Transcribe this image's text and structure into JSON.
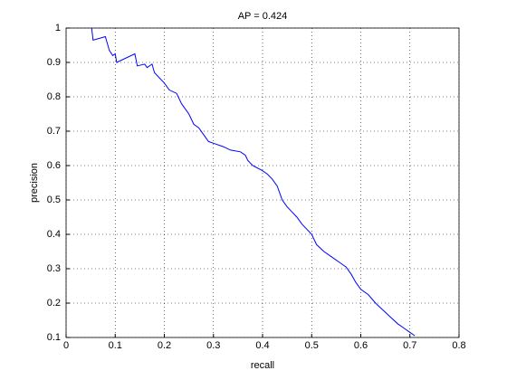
{
  "chart_data": {
    "type": "line",
    "title": "AP = 0.424",
    "xlabel": "recall",
    "ylabel": "precision",
    "xlim": [
      0,
      0.8
    ],
    "ylim": [
      0.1,
      1
    ],
    "xticks": [
      0,
      0.1,
      0.2,
      0.3,
      0.4,
      0.5,
      0.6,
      0.7,
      0.8
    ],
    "yticks": [
      0.1,
      0.2,
      0.3,
      0.4,
      0.5,
      0.6,
      0.7,
      0.8,
      0.9,
      1
    ],
    "grid": true,
    "series": [
      {
        "color": "#0000ff",
        "x": [
          0.052,
          0.055,
          0.08,
          0.088,
          0.095,
          0.1,
          0.103,
          0.14,
          0.145,
          0.16,
          0.165,
          0.175,
          0.18,
          0.2,
          0.21,
          0.225,
          0.235,
          0.25,
          0.26,
          0.27,
          0.28,
          0.29,
          0.3,
          0.32,
          0.335,
          0.355,
          0.365,
          0.37,
          0.38,
          0.4,
          0.41,
          0.42,
          0.43,
          0.435,
          0.44,
          0.45,
          0.46,
          0.47,
          0.48,
          0.49,
          0.5,
          0.51,
          0.525,
          0.54,
          0.555,
          0.57,
          0.58,
          0.59,
          0.6,
          0.615,
          0.63,
          0.645,
          0.66,
          0.675,
          0.69,
          0.7,
          0.71
        ],
        "values": [
          1.0,
          0.965,
          0.975,
          0.935,
          0.92,
          0.925,
          0.9,
          0.925,
          0.89,
          0.895,
          0.885,
          0.895,
          0.87,
          0.84,
          0.82,
          0.81,
          0.78,
          0.75,
          0.72,
          0.71,
          0.69,
          0.67,
          0.665,
          0.655,
          0.645,
          0.64,
          0.63,
          0.615,
          0.6,
          0.585,
          0.575,
          0.56,
          0.54,
          0.52,
          0.5,
          0.48,
          0.465,
          0.45,
          0.43,
          0.415,
          0.4,
          0.37,
          0.35,
          0.335,
          0.32,
          0.305,
          0.285,
          0.26,
          0.24,
          0.225,
          0.2,
          0.18,
          0.16,
          0.14,
          0.125,
          0.115,
          0.105
        ]
      }
    ]
  }
}
